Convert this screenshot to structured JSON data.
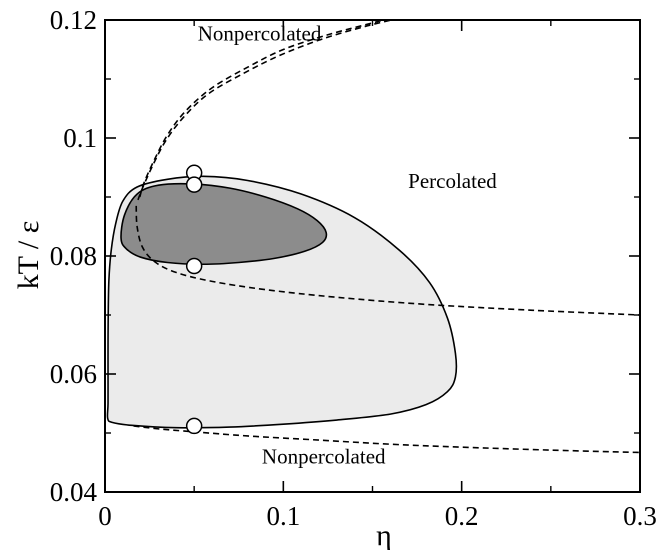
{
  "chart_data": {
    "type": "line",
    "xlabel": "η",
    "ylabel": "kT / ε",
    "xlim": [
      0,
      0.3
    ],
    "ylim": [
      0.04,
      0.12
    ],
    "x_ticks": [
      0,
      0.1,
      0.2,
      0.3
    ],
    "x_tick_labels": [
      "0",
      "0.1",
      "0.2",
      "0.3"
    ],
    "y_ticks": [
      0.04,
      0.06,
      0.08,
      0.1,
      0.12
    ],
    "y_tick_labels": [
      "0.04",
      "0.06",
      "0.08",
      "0.1",
      "0.12"
    ],
    "grid": false,
    "colors": {
      "outer_region_fill": "#ebebeb",
      "inner_region_fill": "#8c8c8c",
      "line": "#000000",
      "marker_fill": "#ffffff"
    },
    "annotations": [
      {
        "text": "Nonpercolated",
        "x": 0.052,
        "y": 0.1165
      },
      {
        "text": "Percolated",
        "x": 0.17,
        "y": 0.0915
      },
      {
        "text": "Nonpercolated",
        "x": 0.088,
        "y": 0.0448
      }
    ],
    "regions": [
      {
        "id": "outer",
        "boundary": [
          [
            0.0015,
            0.0525
          ],
          [
            0.0017,
            0.055
          ],
          [
            0.0017,
            0.06
          ],
          [
            0.0017,
            0.065
          ],
          [
            0.0018,
            0.07
          ],
          [
            0.0022,
            0.076
          ],
          [
            0.0035,
            0.081
          ],
          [
            0.006,
            0.0855
          ],
          [
            0.01,
            0.0893
          ],
          [
            0.018,
            0.0917
          ],
          [
            0.035,
            0.093
          ],
          [
            0.055,
            0.0935
          ],
          [
            0.08,
            0.0928
          ],
          [
            0.11,
            0.0905
          ],
          [
            0.14,
            0.0865
          ],
          [
            0.165,
            0.081
          ],
          [
            0.182,
            0.0755
          ],
          [
            0.192,
            0.0695
          ],
          [
            0.1965,
            0.0635
          ],
          [
            0.1965,
            0.0595
          ],
          [
            0.192,
            0.057
          ],
          [
            0.18,
            0.0548
          ],
          [
            0.16,
            0.0532
          ],
          [
            0.13,
            0.0522
          ],
          [
            0.1,
            0.0515
          ],
          [
            0.07,
            0.051
          ],
          [
            0.04,
            0.0509
          ],
          [
            0.015,
            0.0513
          ],
          [
            0.004,
            0.0518
          ]
        ]
      },
      {
        "id": "inner",
        "boundary": [
          [
            0.009,
            0.083
          ],
          [
            0.011,
            0.087
          ],
          [
            0.018,
            0.0905
          ],
          [
            0.03,
            0.092
          ],
          [
            0.05,
            0.0922
          ],
          [
            0.07,
            0.0915
          ],
          [
            0.09,
            0.09
          ],
          [
            0.108,
            0.088
          ],
          [
            0.119,
            0.086
          ],
          [
            0.124,
            0.084
          ],
          [
            0.122,
            0.0823
          ],
          [
            0.112,
            0.0808
          ],
          [
            0.095,
            0.0796
          ],
          [
            0.075,
            0.0789
          ],
          [
            0.055,
            0.0786
          ],
          [
            0.035,
            0.0789
          ],
          [
            0.02,
            0.0798
          ],
          [
            0.012,
            0.0812
          ]
        ]
      }
    ],
    "series": [
      {
        "style": "dashed",
        "points": [
          [
            0.0195,
            0.09
          ],
          [
            0.022,
            0.0925
          ],
          [
            0.028,
            0.0965
          ],
          [
            0.035,
            0.1005
          ],
          [
            0.045,
            0.1045
          ],
          [
            0.06,
            0.1085
          ],
          [
            0.08,
            0.112
          ],
          [
            0.1,
            0.115
          ],
          [
            0.125,
            0.1175
          ],
          [
            0.15,
            0.1195
          ],
          [
            0.16,
            0.1203
          ]
        ]
      },
      {
        "style": "dashed",
        "points": [
          [
            0.0185,
            0.0895
          ],
          [
            0.021,
            0.0915
          ],
          [
            0.027,
            0.0955
          ],
          [
            0.034,
            0.0995
          ],
          [
            0.044,
            0.1035
          ],
          [
            0.058,
            0.1075
          ],
          [
            0.078,
            0.111
          ],
          [
            0.098,
            0.114
          ],
          [
            0.122,
            0.1168
          ],
          [
            0.147,
            0.119
          ],
          [
            0.165,
            0.1203
          ]
        ]
      },
      {
        "style": "dashed",
        "points": [
          [
            0.0175,
            0.0885
          ],
          [
            0.018,
            0.085
          ],
          [
            0.021,
            0.0815
          ],
          [
            0.028,
            0.079
          ],
          [
            0.04,
            0.0772
          ],
          [
            0.06,
            0.0757
          ],
          [
            0.09,
            0.0743
          ],
          [
            0.13,
            0.073
          ],
          [
            0.18,
            0.0718
          ],
          [
            0.24,
            0.0708
          ],
          [
            0.3,
            0.07
          ]
        ]
      },
      {
        "style": "dashed",
        "points": [
          [
            0.016,
            0.0512
          ],
          [
            0.03,
            0.0507
          ],
          [
            0.05,
            0.0502
          ],
          [
            0.08,
            0.0495
          ],
          [
            0.12,
            0.0488
          ],
          [
            0.16,
            0.0481
          ],
          [
            0.2,
            0.0476
          ],
          [
            0.25,
            0.0471
          ],
          [
            0.3,
            0.0467
          ]
        ]
      },
      {
        "style": "markers",
        "points": [
          [
            0.05,
            0.0941
          ],
          [
            0.05,
            0.0921
          ],
          [
            0.05,
            0.0783
          ],
          [
            0.05,
            0.0512
          ]
        ]
      }
    ]
  }
}
